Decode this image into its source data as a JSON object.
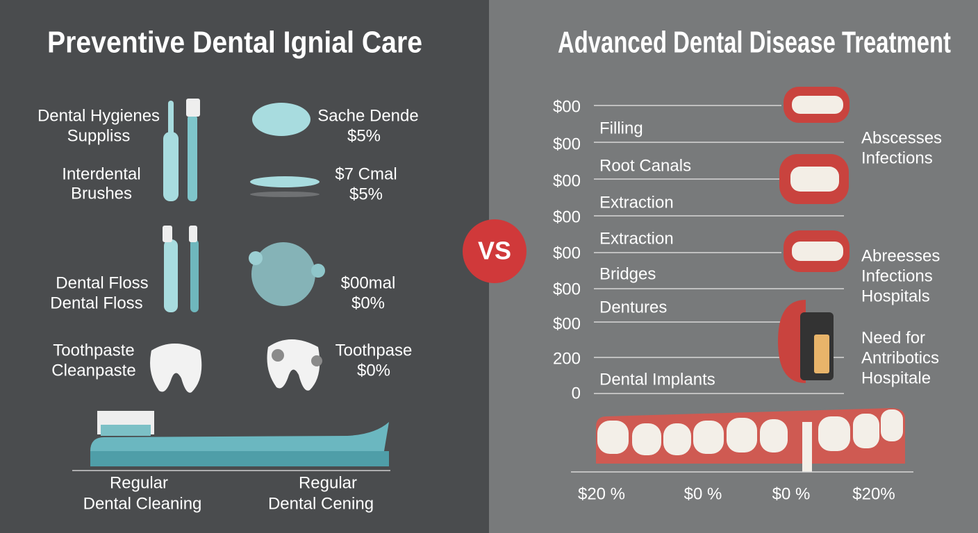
{
  "vs": "VS",
  "left": {
    "title": "Preventive Dental Ignial Care",
    "items": [
      {
        "lines": [
          "Dental Hygienes",
          "Suppliss"
        ]
      },
      {
        "lines": [
          "Interdental",
          "Brushes"
        ]
      },
      {
        "lines": [
          "Sache Dende",
          "$5%"
        ]
      },
      {
        "lines": [
          "$7 Cmal",
          "$5%"
        ]
      },
      {
        "lines": [
          "Dental Floss",
          "Dental Floss"
        ]
      },
      {
        "lines": [
          "$00mal",
          "$0%"
        ]
      },
      {
        "lines": [
          "Toothpaste",
          "Cleanpaste"
        ]
      },
      {
        "lines": [
          "Toothpase",
          "$0%"
        ]
      },
      {
        "lines": [
          "Regular",
          "Dental Cleaning"
        ]
      },
      {
        "lines": [
          "Regular",
          "Dental Cening"
        ]
      }
    ]
  },
  "right": {
    "title": "Advanced Dental Disease Treatment",
    "y_labels": [
      "$00",
      "$00",
      "$00",
      "$00",
      "$00",
      "$00",
      "$00",
      "200",
      "0"
    ],
    "rows": [
      "Filling",
      "Root Canals",
      "Extraction",
      "Extraction",
      "Bridges",
      "Dentures",
      "Dental Implants"
    ],
    "notes": [
      {
        "lines": [
          "Abscesses",
          "Infections"
        ]
      },
      {
        "lines": [
          "Abreesses",
          "Infections",
          "Hospitals"
        ]
      },
      {
        "lines": [
          "Need for",
          "Antribotics",
          "Hospitale"
        ]
      }
    ],
    "x_labels": [
      "$20 %",
      "$0 %",
      "$0 %",
      "$20%"
    ]
  }
}
